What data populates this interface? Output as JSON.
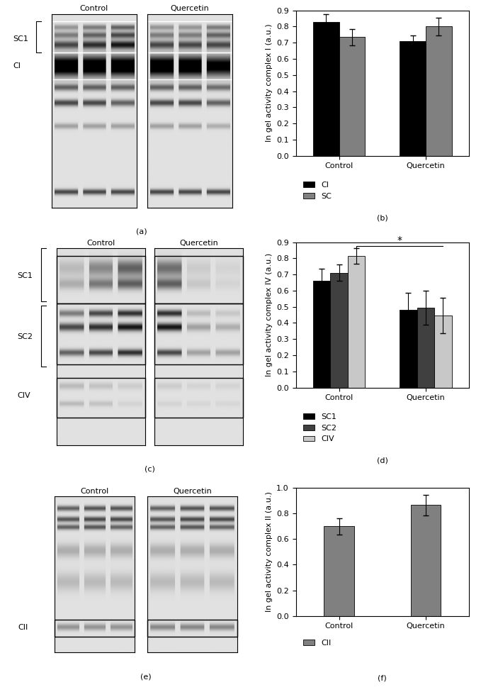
{
  "chart_data": [
    {
      "type": "bar",
      "panel_label": "(b)",
      "ylabel": "In gel activity complex I (a.u.)",
      "categories": [
        "Control",
        "Quercetin"
      ],
      "series": [
        {
          "name": "CI",
          "color": "#000000",
          "values": [
            0.83,
            0.71
          ],
          "errors": [
            0.045,
            0.035
          ]
        },
        {
          "name": "SC",
          "color": "#808080",
          "values": [
            0.735,
            0.8
          ],
          "errors": [
            0.05,
            0.055
          ]
        }
      ],
      "ylim": [
        0,
        0.9
      ],
      "yticks": [
        {
          "value": 0,
          "label": "0.0"
        },
        0.1,
        0.2,
        0.3,
        0.4,
        0.5,
        0.6,
        0.7,
        0.8,
        0.9
      ],
      "legend": "upper left"
    },
    {
      "type": "bar",
      "panel_label": "(d)",
      "ylabel": "In gel activity complex IV (a.u.)",
      "categories": [
        "Control",
        "Quercetin"
      ],
      "series": [
        {
          "name": "SC1",
          "color": "#000000",
          "values": [
            0.66,
            0.48
          ],
          "errors": [
            0.075,
            0.105
          ]
        },
        {
          "name": "SC2",
          "color": "#404040",
          "values": [
            0.71,
            0.495
          ],
          "errors": [
            0.05,
            0.105
          ]
        },
        {
          "name": "CIV",
          "color": "#c8c8c8",
          "values": [
            0.815,
            0.445
          ],
          "errors": [
            0.05,
            0.11
          ]
        }
      ],
      "ylim": [
        0,
        0.9
      ],
      "yticks": [
        {
          "value": 0,
          "label": "0.0"
        },
        0.1,
        0.2,
        0.3,
        0.4,
        0.5,
        0.6,
        0.7,
        0.8,
        0.9
      ],
      "significance": {
        "series": "CIV",
        "from": "Control",
        "to": "Quercetin",
        "text": "*"
      },
      "legend": "upper left"
    },
    {
      "type": "bar",
      "panel_label": "(f)",
      "ylabel": "In gel activity complex II (a.u.)",
      "categories": [
        "Control",
        "Quercetin"
      ],
      "series": [
        {
          "name": "CII",
          "color": "#808080",
          "values": [
            0.7,
            0.865
          ],
          "errors": [
            0.065,
            0.08
          ]
        }
      ],
      "ylim": [
        0,
        1.0
      ],
      "yticks": [
        {
          "value": 0,
          "label": "0.0"
        },
        0.2,
        0.4,
        0.6,
        0.8,
        {
          "value": 1.0,
          "label": "1.0"
        }
      ],
      "legend": "upper left"
    }
  ],
  "gels": [
    {
      "panel_label": "(a)",
      "groups": [
        "Control",
        "Quercetin"
      ],
      "band_labels": [
        "SC1",
        "CI"
      ]
    },
    {
      "panel_label": "(c)",
      "groups": [
        "Control",
        "Quercetin"
      ],
      "band_labels": [
        "SC1",
        "SC2",
        "CIV"
      ]
    },
    {
      "panel_label": "(e)",
      "groups": [
        "Control",
        "Quercetin"
      ],
      "band_labels": [
        "CII"
      ]
    }
  ]
}
